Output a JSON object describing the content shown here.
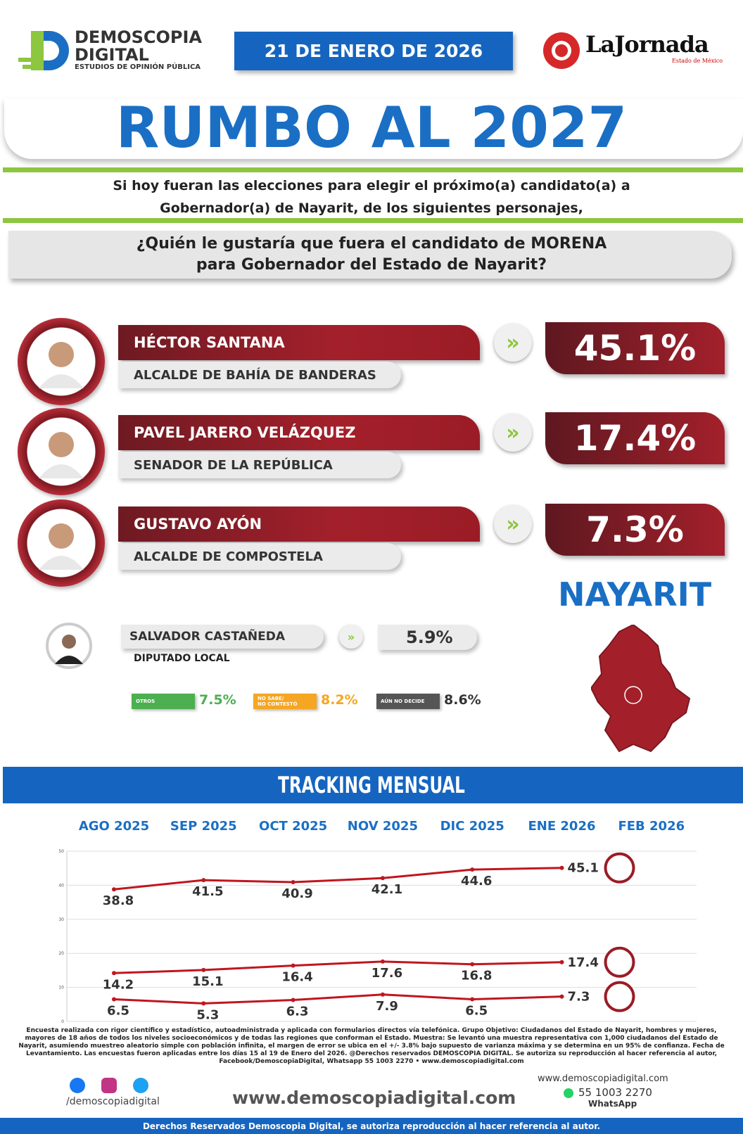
{
  "header": {
    "brand": "DEMOSCOPIA",
    "brand2": "DIGITAL",
    "brand_sub": "ESTUDIOS DE OPINIÓN PÚBLICA",
    "date": "21 DE ENERO DE 2026",
    "partner": "LaJornada",
    "partner_sub": "Estado de México"
  },
  "title": "RUMBO AL 2027",
  "intro": [
    "Si hoy fueran las elecciones para elegir el próximo(a) candidato(a) a",
    "Gobernador(a) de Nayarit, de los siguientes personajes,"
  ],
  "question": [
    "¿Quién le gustaría que fuera el candidato de MORENA",
    "para Gobernador del Estado de Nayarit?"
  ],
  "candidates": [
    {
      "name": "HÉCTOR SANTANA",
      "role": "ALCALDE DE BAHÍA DE BANDERAS",
      "value": "45.1%"
    },
    {
      "name": "PAVEL JARERO VELÁZQUEZ",
      "role": "SENADOR DE LA REPÚBLICA",
      "value": "17.4%"
    },
    {
      "name": "GUSTAVO AYÓN",
      "role": "ALCALDE DE COMPOSTELA",
      "value": "7.3%"
    }
  ],
  "minor_candidate": {
    "name": "SALVADOR CASTAÑEDA",
    "role": "DIPUTADO LOCAL",
    "value": "5.9%"
  },
  "others": [
    {
      "label": "OTROS",
      "value": "7.5%",
      "color": "#4caf50"
    },
    {
      "label": "NO SABE/\nNO CONTESTÓ",
      "value": "8.2%",
      "color": "#f5a623"
    },
    {
      "label": "AÚN NO DECIDE",
      "value": "8.6%",
      "color": "#555555"
    }
  ],
  "region": "NAYARIT",
  "chart_data": {
    "type": "line",
    "title": "TRACKING MENSUAL",
    "categories": [
      "AGO 2025",
      "SEP 2025",
      "OCT 2025",
      "NOV 2025",
      "DIC 2025",
      "ENE 2026",
      "FEB 2026"
    ],
    "ylim": [
      0,
      50
    ],
    "yticks": [
      0,
      10,
      20,
      30,
      40,
      50
    ],
    "grid": true,
    "series": [
      {
        "color": "#c0161f",
        "values": [
          38.8,
          41.5,
          40.9,
          42.1,
          44.6,
          45.1,
          null
        ]
      },
      {
        "color": "#c0161f",
        "values": [
          14.2,
          15.1,
          16.4,
          17.6,
          16.8,
          17.4,
          null
        ]
      },
      {
        "color": "#c0161f",
        "values": [
          6.5,
          5.3,
          6.3,
          7.9,
          6.5,
          7.3,
          null
        ]
      }
    ]
  },
  "footnote": "Encuesta realizada con rigor científico y estadístico, autoadministrada y aplicada con formularios directos vía telefónica. Grupo Objetivo: Ciudadanos del Estado de Nayarit, hombres y mujeres, mayores de 18 años de todos los niveles socioeconómicos y de todas las regiones que conforman el Estado. Muestra: Se levantó una muestra representativa con 1,000 ciudadanos del Estado de Nayarit, asumiendo muestreo aleatorio simple con población infinita, el margen de error se ubica en el +/- 3.8% bajo supuesto de varianza máxima y se determina en un 95% de confianza. Fecha de Levantamiento. Las encuestas fueron aplicadas entre los días 15 al 19 de Enero del 2026. @Derechos reservados DEMOSCOPIA DIGITAL. Se autoriza su reproducción al hacer referencia al autor, Facebook/DemoscopiaDigital, Whatsapp 55 1003 2270 • www.demoscopiadigital.com",
  "footer": {
    "social": "/demoscopiadigital",
    "website": "www.demoscopiadigital.com",
    "website_small": "www.demoscopiadigital.com",
    "phone": "55 1003 2270",
    "phone_label": "WhatsApp",
    "copyright": "Derechos Reservados Demoscopia Digital, se autoriza reproducción al hacer referencia al autor."
  }
}
